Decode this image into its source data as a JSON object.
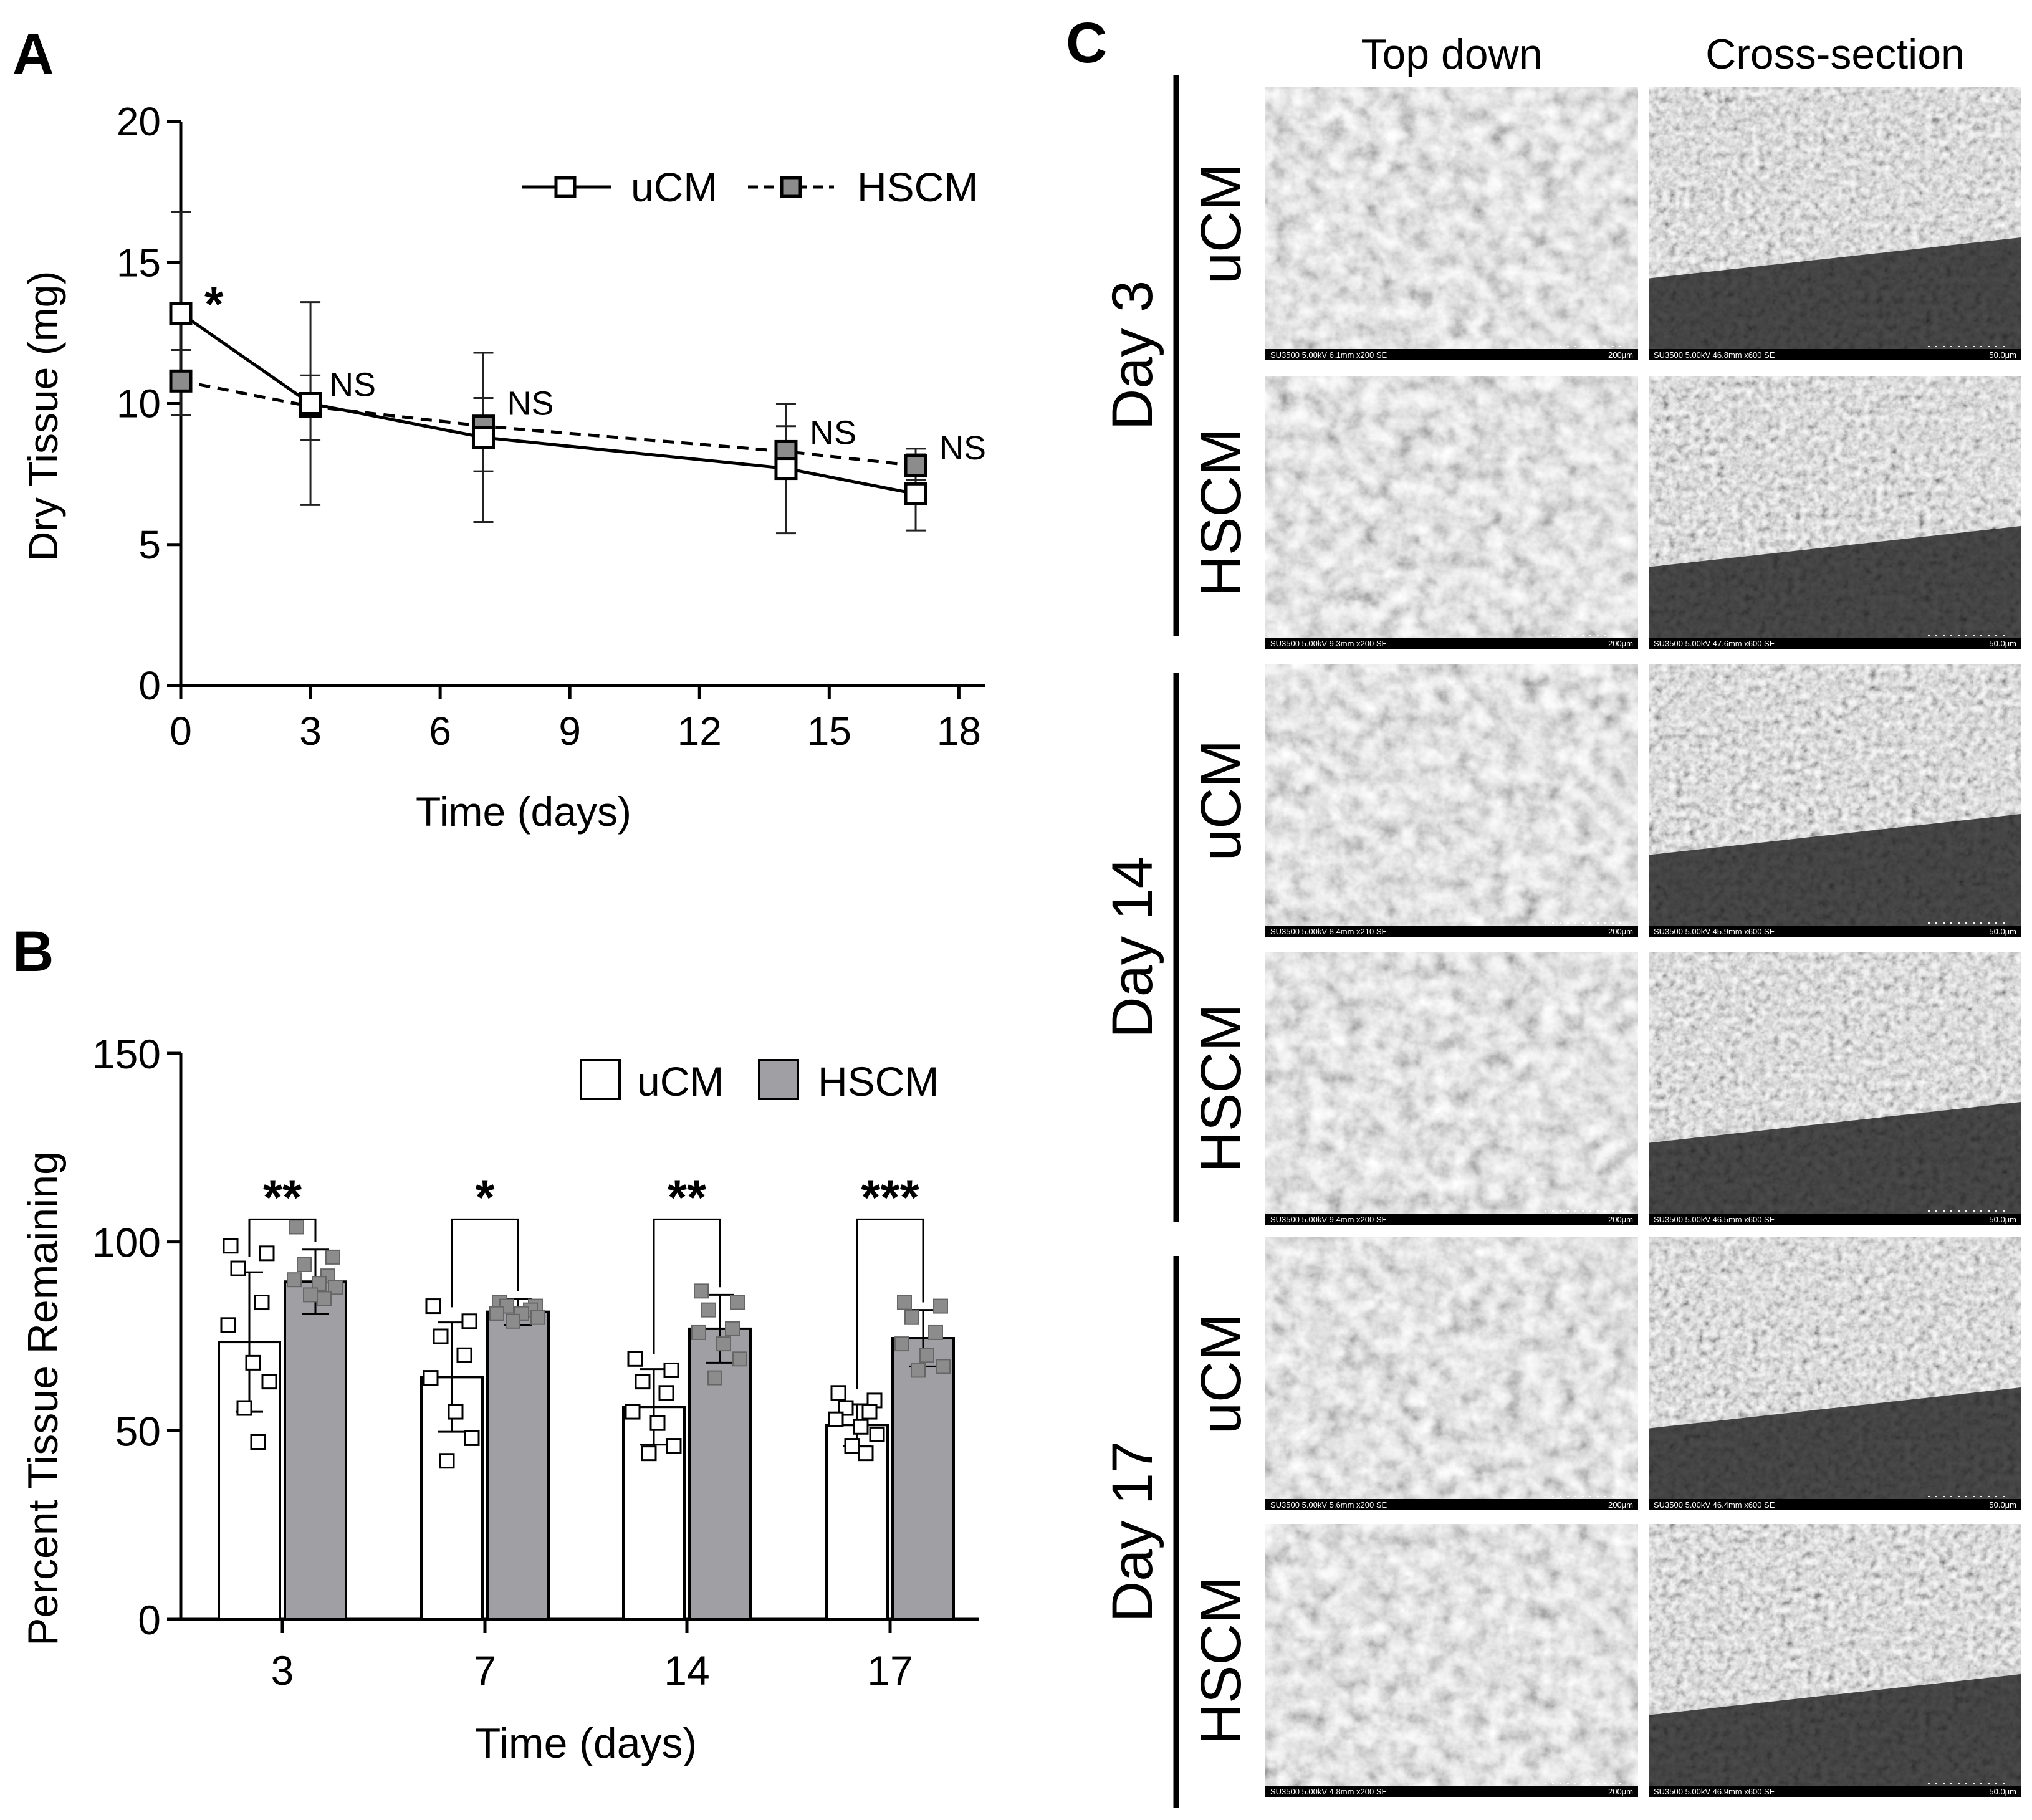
{
  "panels": {
    "a": {
      "letter": "A"
    },
    "b": {
      "letter": "B"
    },
    "c": {
      "letter": "C"
    }
  },
  "chart_data": [
    {
      "type": "line",
      "panel": "A",
      "title": "",
      "xlabel": "Time (days)",
      "ylabel": "Dry Tissue (mg)",
      "xlim": [
        0,
        18.6
      ],
      "ylim": [
        0,
        20
      ],
      "xticks": [
        0,
        3,
        6,
        9,
        12,
        15,
        18
      ],
      "yticks": [
        0,
        5,
        10,
        15,
        20
      ],
      "legend": [
        "uCM",
        "HSCM"
      ],
      "legend_position": "top-right",
      "series": [
        {
          "name": "uCM",
          "style": "solid",
          "marker_color": "#ffffff",
          "x": [
            0,
            3,
            7,
            14,
            17
          ],
          "y": [
            13.2,
            10.0,
            8.8,
            7.7,
            6.8
          ],
          "err_upper": [
            16.8,
            13.6,
            11.8,
            10.0,
            8.2
          ],
          "err_lower": [
            9.6,
            6.4,
            5.8,
            5.4,
            5.5
          ]
        },
        {
          "name": "HSCM",
          "style": "dashed",
          "marker_color": "#8c8c8c",
          "x": [
            0,
            3,
            7,
            14,
            17
          ],
          "y": [
            10.8,
            9.9,
            9.2,
            8.3,
            7.8
          ],
          "err_upper": [
            11.9,
            11.0,
            10.2,
            9.2,
            8.4
          ],
          "err_lower": [
            9.6,
            8.7,
            7.6,
            7.6,
            7.3
          ]
        }
      ],
      "annotations": [
        {
          "x": 0,
          "y": 13.2,
          "text": "*"
        },
        {
          "x": 3,
          "y": 10.0,
          "text": "NS"
        },
        {
          "x": 7,
          "y": 9.2,
          "text": "NS"
        },
        {
          "x": 14,
          "y": 8.3,
          "text": "NS"
        },
        {
          "x": 17,
          "y": 7.8,
          "text": "NS"
        }
      ]
    },
    {
      "type": "bar",
      "panel": "B",
      "title": "",
      "xlabel": "Time (days)",
      "ylabel": "Percent Tissue Remaining",
      "ylim": [
        0,
        150
      ],
      "yticks": [
        0,
        50,
        100,
        150
      ],
      "categories": [
        "3",
        "7",
        "14",
        "17"
      ],
      "legend": [
        "uCM",
        "HSCM"
      ],
      "legend_position": "top-right",
      "series": [
        {
          "name": "uCM",
          "color": "#ffffff",
          "values": [
            73.5,
            64.2,
            56.3,
            51.5
          ],
          "sd": [
            18.5,
            14.5,
            10.0,
            5.5
          ],
          "points": [
            [
              99,
              97,
              93,
              84,
              78,
              68,
              63,
              56,
              47
            ],
            [
              83,
              79,
              75,
              70,
              64,
              55,
              48,
              42
            ],
            [
              69,
              66,
              63,
              60,
              55,
              52,
              46,
              44
            ],
            [
              60,
              58,
              56,
              55,
              53,
              51,
              49,
              46,
              44
            ]
          ]
        },
        {
          "name": "HSCM",
          "color": "#a0a0a4",
          "values": [
            89.5,
            81.5,
            77.0,
            74.5
          ],
          "sd": [
            8.5,
            3.5,
            9.0,
            7.5
          ],
          "points": [
            [
              104,
              96,
              94,
              91,
              90,
              89,
              88,
              86,
              85
            ],
            [
              84,
              83,
              83,
              82,
              81,
              81,
              80,
              79
            ],
            [
              87,
              84,
              82,
              77,
              76,
              73,
              69,
              64
            ],
            [
              84,
              83,
              80,
              76,
              73,
              70,
              67,
              66
            ]
          ]
        }
      ],
      "significance": [
        "**",
        "*",
        "**",
        "***"
      ]
    }
  ],
  "sem_grid": {
    "column_headers": [
      "Top down",
      "Cross-section"
    ],
    "day_groups": [
      "Day 3",
      "Day 14",
      "Day 17"
    ],
    "row_labels": [
      "uCM",
      "HSCM"
    ],
    "scale_bars": [
      "200μm",
      "50.0μm"
    ],
    "metadata": [
      [
        "SU3500 5.00kV 6.1mm x200 SE",
        "SU3500 5.00kV 46.8mm x600 SE"
      ],
      [
        "SU3500 5.00kV 9.3mm x200 SE",
        "SU3500 5.00kV 47.6mm x600 SE"
      ],
      [
        "SU3500 5.00kV 8.4mm x210 SE",
        "SU3500 5.00kV 45.9mm x600 SE"
      ],
      [
        "SU3500 5.00kV 9.4mm x200 SE",
        "SU3500 5.00kV 46.5mm x600 SE"
      ],
      [
        "SU3500 5.00kV 5.6mm x200 SE",
        "SU3500 5.00kV 46.4mm x600 SE"
      ],
      [
        "SU3500 5.00kV 4.8mm x200 SE",
        "SU3500 5.00kV 46.9mm x600 SE"
      ]
    ]
  }
}
